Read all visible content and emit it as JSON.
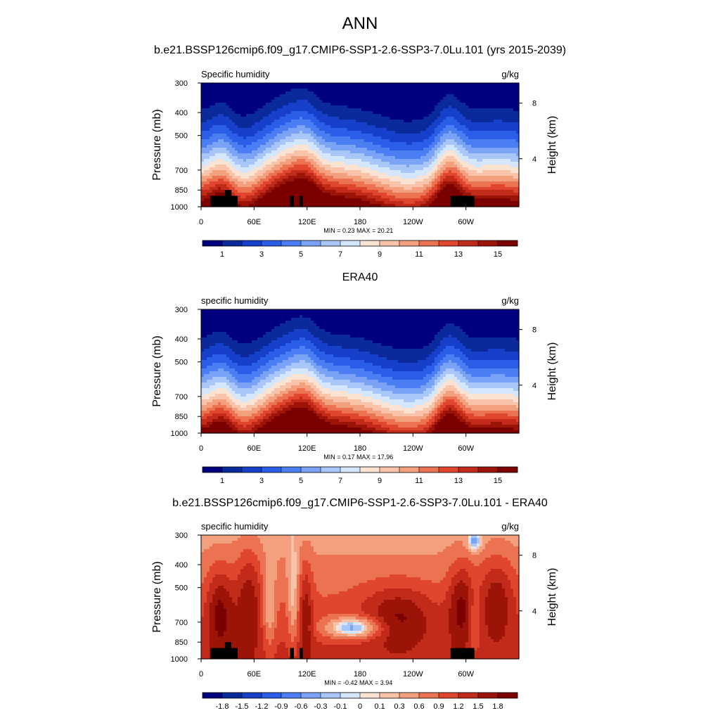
{
  "header": {
    "season": "ANN",
    "case_title": "b.e21.BSSP126cmip6.f09_g17.CMIP6-SSP1-2.6-SSP3-7.0Lu.101 (yrs 2015-2039)"
  },
  "colors": {
    "abs_scale": [
      "#00007f",
      "#0a2a9c",
      "#1640c9",
      "#2a5ee8",
      "#4a7ef2",
      "#7aa3f5",
      "#a9c6f8",
      "#d4e6fb",
      "#fbe3d4",
      "#f8c3a8",
      "#f3a07e",
      "#ec7352",
      "#e0462e",
      "#c22a1a",
      "#9c1408",
      "#7b0000"
    ],
    "diff_scale": [
      "#00007f",
      "#0a2a9c",
      "#1640c9",
      "#2a5ee8",
      "#4a7ef2",
      "#7aa3f5",
      "#a9c6f8",
      "#d4e6fb",
      "#fbe3d4",
      "#f8c3a8",
      "#f3a07e",
      "#ec7352",
      "#e0462e",
      "#c22a1a",
      "#9c1408",
      "#7b0000"
    ],
    "topography": "#000000"
  },
  "chart_data": [
    {
      "type": "contour",
      "id": "model",
      "left_label": "Specific humidity",
      "right_label": "g/kg",
      "ylabel": "Pressure (mb)",
      "y2label": "Height (km)",
      "yticks": [
        "300",
        "400",
        "500",
        "700",
        "850",
        "1000"
      ],
      "y2ticks": [
        "8",
        "4"
      ],
      "xticks": [
        "0",
        "60E",
        "120E",
        "180",
        "120W",
        "60W"
      ],
      "stats": "MIN =   0.23  MAX =  20.21",
      "colorbar_labels": [
        "1",
        "3",
        "5",
        "7",
        "9",
        "11",
        "13",
        "15"
      ],
      "scale": "abs",
      "max": 20.21,
      "min": 0.23,
      "show_topo": true
    },
    {
      "type": "contour",
      "id": "obs",
      "panel_title": "ERA40",
      "left_label": "specific humidity",
      "right_label": "g/kg",
      "ylabel": "Pressure (mb)",
      "y2label": "Height (km)",
      "yticks": [
        "300",
        "400",
        "500",
        "700",
        "850",
        "1000"
      ],
      "y2ticks": [
        "8",
        "4"
      ],
      "xticks": [
        "0",
        "60E",
        "120E",
        "180",
        "120W",
        "60W"
      ],
      "stats": "MIN =   0.17  MAX =  17.96",
      "colorbar_labels": [
        "1",
        "3",
        "5",
        "7",
        "9",
        "11",
        "13",
        "15"
      ],
      "scale": "abs",
      "max": 17.96,
      "min": 0.17,
      "show_topo": false
    },
    {
      "type": "contour",
      "id": "diff",
      "panel_title": "b.e21.BSSP126cmip6.f09_g17.CMIP6-SSP1-2.6-SSP3-7.0Lu.101 - ERA40",
      "left_label": "specific humidity",
      "right_label": "g/kg",
      "ylabel": "Pressure (mb)",
      "y2label": "Height (km)",
      "yticks": [
        "300",
        "400",
        "500",
        "700",
        "850",
        "1000"
      ],
      "y2ticks": [
        "8",
        "4"
      ],
      "xticks": [
        "0",
        "60E",
        "120E",
        "180",
        "120W",
        "60W"
      ],
      "stats": "MIN =  -0.42  MAX =   3.94",
      "colorbar_labels": [
        "-1.8",
        "-1.5",
        "-1.2",
        "-0.9",
        "-0.6",
        "-0.3",
        "-0.1",
        "0",
        "0.1",
        "0.3",
        "0.6",
        "0.9",
        "1.2",
        "1.5",
        "1.8"
      ],
      "scale": "diff",
      "max": 3.94,
      "min": -0.42,
      "show_topo": true
    }
  ]
}
